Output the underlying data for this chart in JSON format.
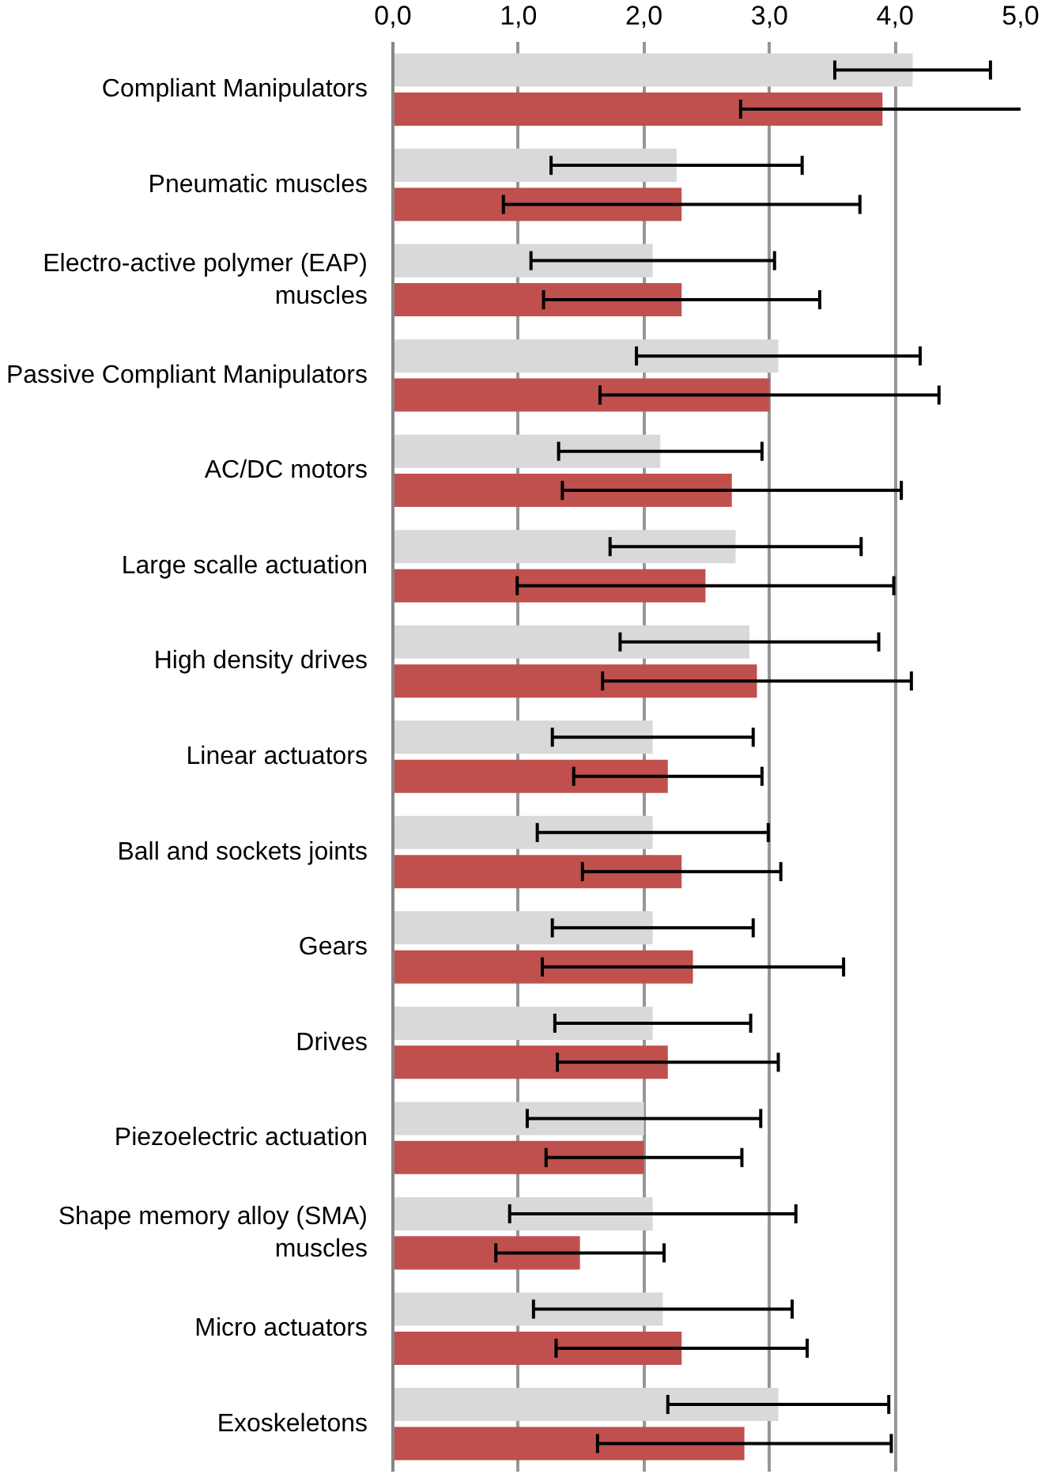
{
  "chart_data": {
    "type": "bar",
    "orientation": "horizontal",
    "categories": [
      "Compliant Manipulators",
      "Pneumatic muscles",
      "Electro-active polymer (EAP)\nmuscles",
      "Passive Compliant Manipulators",
      "AC/DC motors",
      "Large scalle actuation",
      "High density drives",
      "Linear actuators",
      "Ball and sockets joints",
      "Gears",
      "Drives",
      "Piezoelectric actuation",
      "Shape memory alloy (SMA)\nmuscles",
      "Micro actuators",
      "Exoskeletons"
    ],
    "series": [
      {
        "color": "#d9d9d9",
        "values": [
          4.14,
          2.26,
          2.07,
          3.07,
          2.13,
          2.73,
          2.84,
          2.07,
          2.07,
          2.07,
          2.07,
          2.0,
          2.07,
          2.15,
          3.07
        ],
        "errors": [
          0.62,
          1.0,
          0.97,
          1.13,
          0.81,
          1.0,
          1.03,
          0.8,
          0.92,
          0.8,
          0.78,
          0.93,
          1.14,
          1.03,
          0.88
        ]
      },
      {
        "color": "#c0504d",
        "values": [
          3.9,
          2.3,
          2.3,
          3.0,
          2.7,
          2.49,
          2.9,
          2.19,
          2.3,
          2.39,
          2.19,
          2.0,
          1.49,
          2.3,
          2.8
        ],
        "errors": [
          1.13,
          1.42,
          1.1,
          1.35,
          1.35,
          1.5,
          1.23,
          0.75,
          0.79,
          1.2,
          0.88,
          0.78,
          0.67,
          1.0,
          1.17
        ]
      }
    ],
    "xlim": [
      0,
      5
    ],
    "xticks": [
      {
        "value": 0,
        "label": "0,0"
      },
      {
        "value": 1,
        "label": "1,0"
      },
      {
        "value": 2,
        "label": "2,0"
      },
      {
        "value": 3,
        "label": "3,0"
      },
      {
        "value": 4,
        "label": "4,0"
      },
      {
        "value": 5,
        "label": "5,0"
      }
    ],
    "grid": "x"
  }
}
